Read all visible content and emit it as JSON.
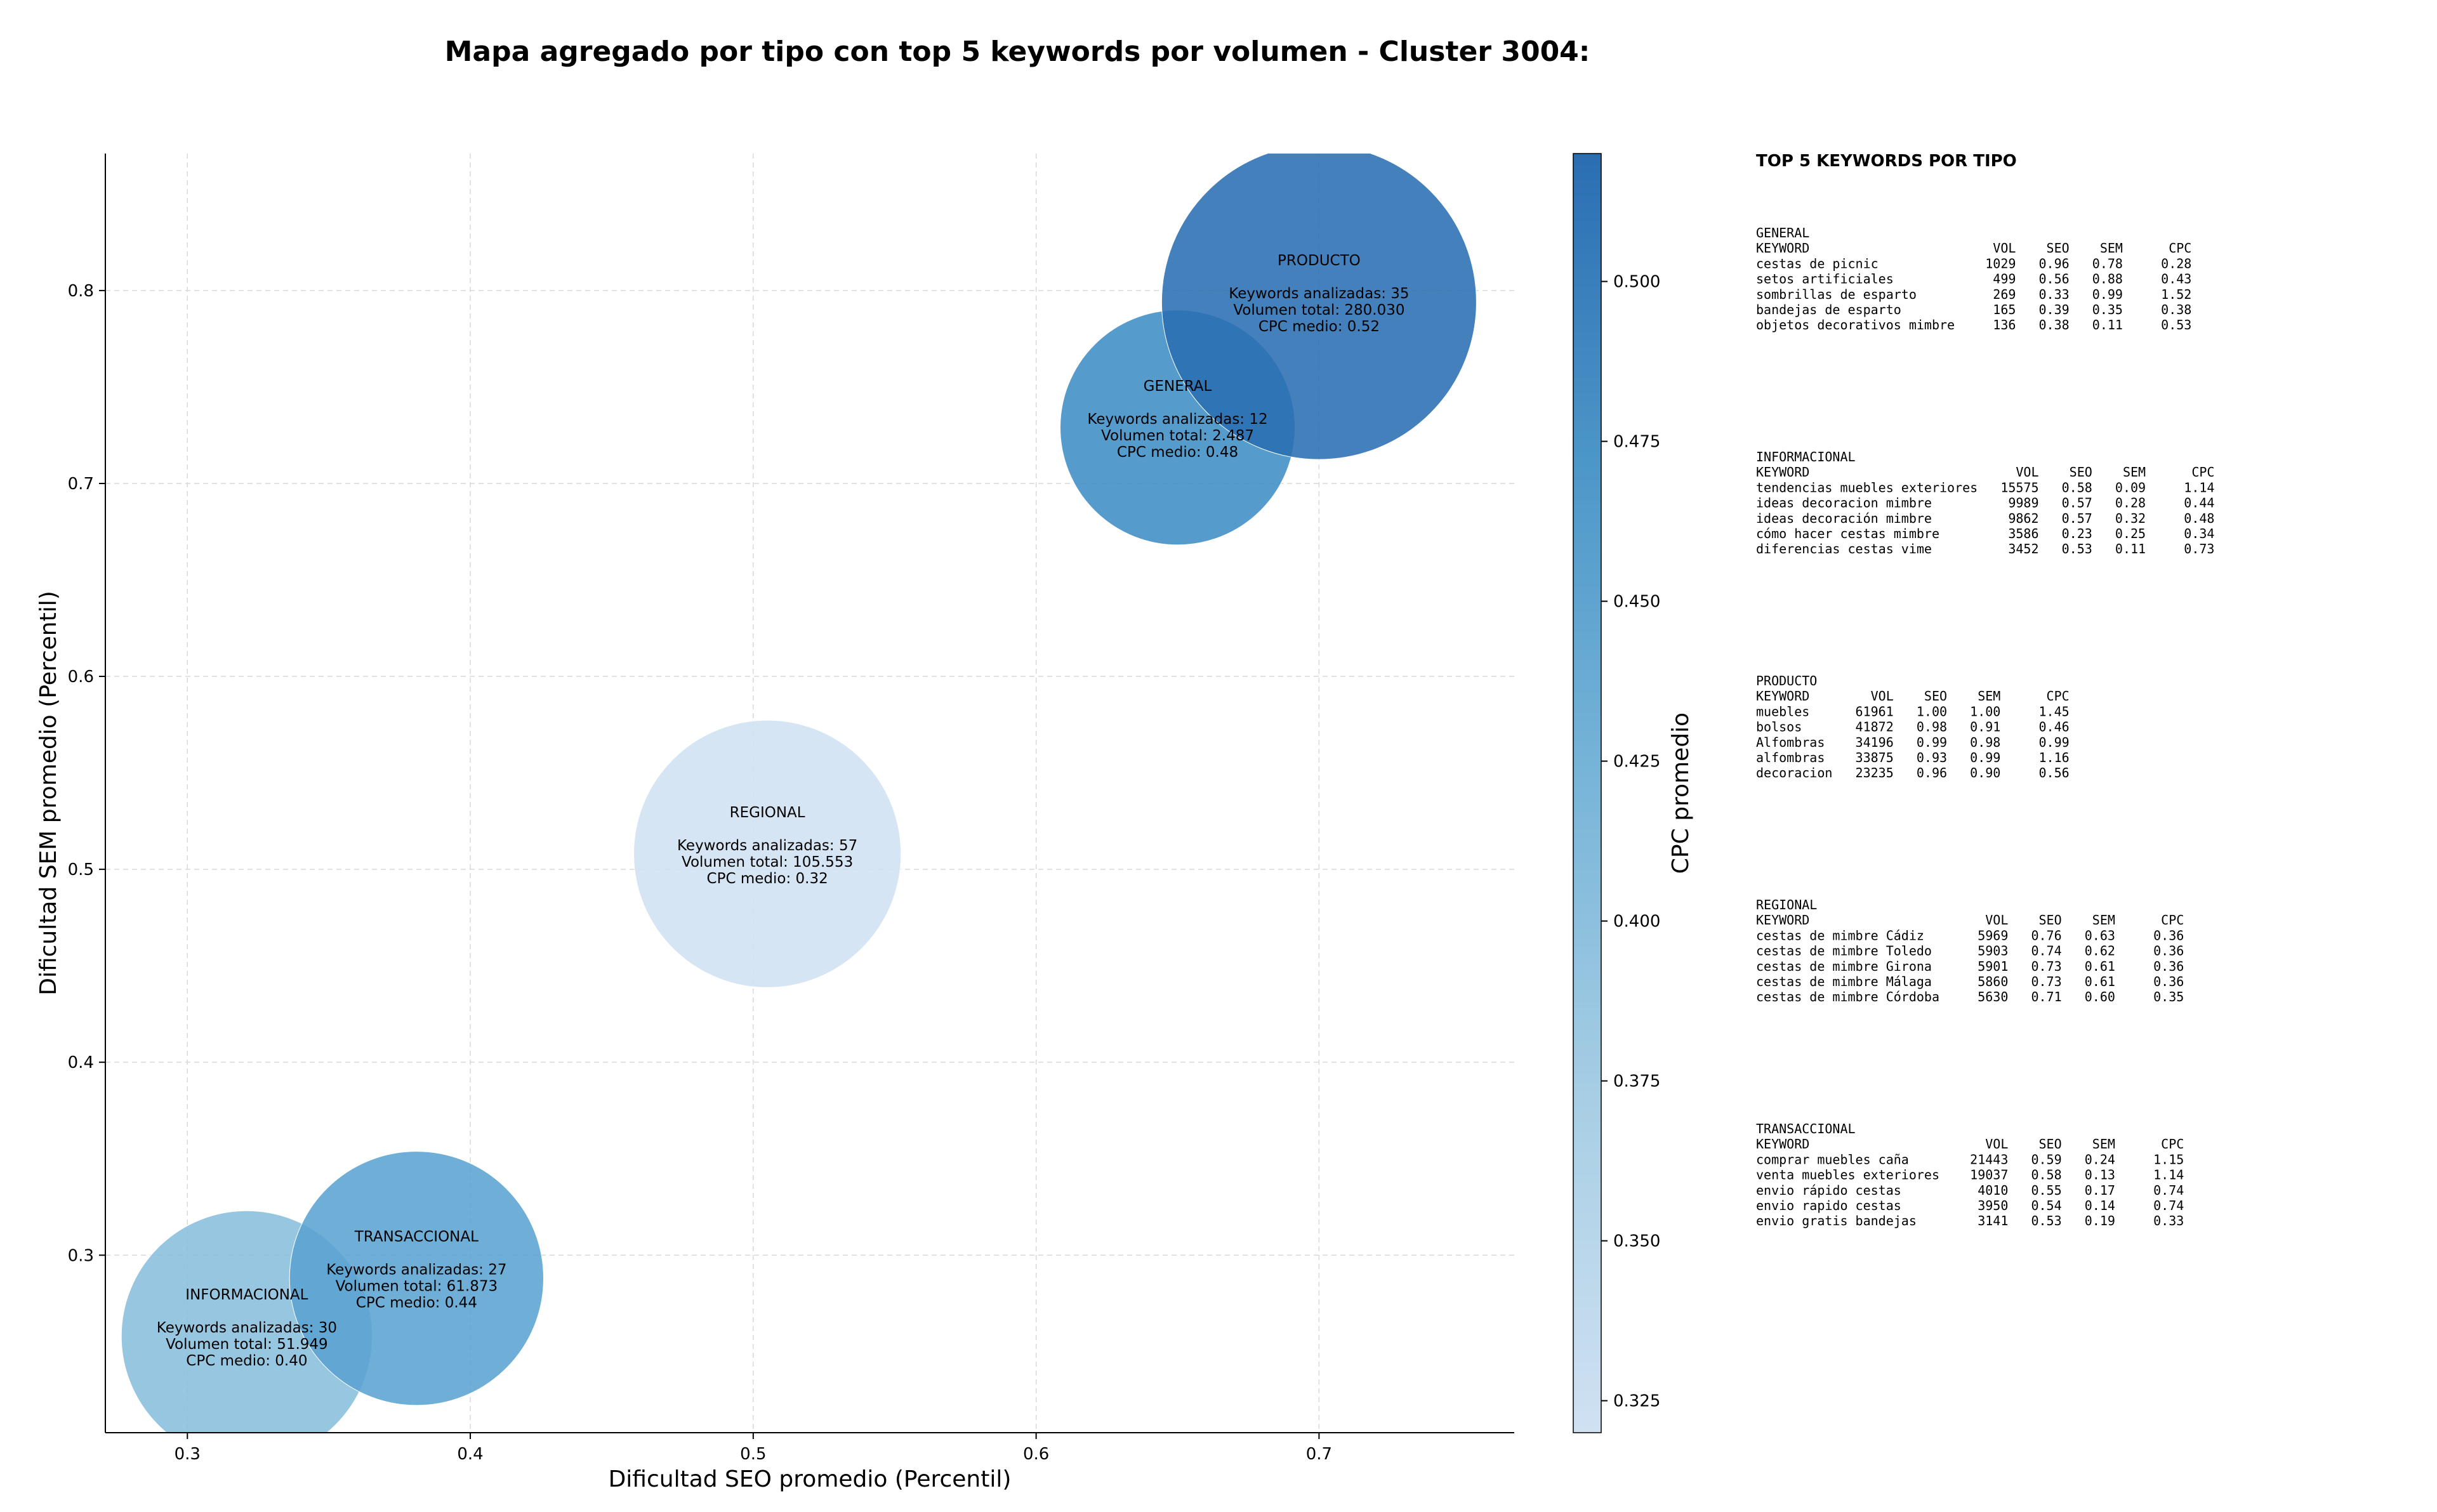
{
  "chart_data": {
    "type": "scatter",
    "title": "Mapa agregado por tipo con top 5 keywords por volumen - Cluster 3004:",
    "xlabel": "Dificultad SEO promedio (Percentil)",
    "ylabel": "Dificultad SEM promedio (Percentil)",
    "xlim": [
      0.271,
      0.769
    ],
    "ylim": [
      0.208,
      0.871
    ],
    "xticks": [
      {
        "v": 0.3,
        "label": "0.3"
      },
      {
        "v": 0.4,
        "label": "0.4"
      },
      {
        "v": 0.5,
        "label": "0.5"
      },
      {
        "v": 0.6,
        "label": "0.6"
      },
      {
        "v": 0.7,
        "label": "0.7"
      }
    ],
    "yticks": [
      {
        "v": 0.3,
        "label": "0.3"
      },
      {
        "v": 0.4,
        "label": "0.4"
      },
      {
        "v": 0.5,
        "label": "0.5"
      },
      {
        "v": 0.6,
        "label": "0.6"
      },
      {
        "v": 0.7,
        "label": "0.7"
      },
      {
        "v": 0.8,
        "label": "0.8"
      }
    ],
    "grid": true,
    "colorbar": {
      "label": "CPC promedio",
      "min": 0.32,
      "max": 0.52,
      "low_color": "#d0e1f2",
      "high_color": "#2a6eb2",
      "ticks": [
        {
          "v": 0.325,
          "label": "0.325"
        },
        {
          "v": 0.35,
          "label": "0.350"
        },
        {
          "v": 0.375,
          "label": "0.375"
        },
        {
          "v": 0.4,
          "label": "0.400"
        },
        {
          "v": 0.425,
          "label": "0.425"
        },
        {
          "v": 0.45,
          "label": "0.450"
        },
        {
          "v": 0.475,
          "label": "0.475"
        },
        {
          "v": 0.5,
          "label": "0.500"
        }
      ]
    },
    "points": [
      {
        "name": "INFORMACIONAL",
        "x": 0.321,
        "y": 0.258,
        "keywords": 30,
        "volume": 51949,
        "cpc": 0.4,
        "color": "#89bedc",
        "lines": [
          "INFORMACIONAL",
          "",
          "Keywords analizadas: 30",
          "Volumen total: 51.949",
          "CPC medio: 0.40"
        ]
      },
      {
        "name": "TRANSACCIONAL",
        "x": 0.381,
        "y": 0.288,
        "keywords": 27,
        "volume": 61873,
        "cpc": 0.44,
        "color": "#5ba3d0",
        "lines": [
          "TRANSACCIONAL",
          "",
          "Keywords analizadas: 27",
          "Volumen total: 61.873",
          "CPC medio: 0.44"
        ]
      },
      {
        "name": "REGIONAL",
        "x": 0.505,
        "y": 0.508,
        "keywords": 57,
        "volume": 105553,
        "cpc": 0.32,
        "color": "#d0e1f2",
        "lines": [
          "REGIONAL",
          "",
          "Keywords analizadas: 57",
          "Volumen total: 105.553",
          "CPC medio: 0.32"
        ]
      },
      {
        "name": "GENERAL",
        "x": 0.65,
        "y": 0.729,
        "keywords": 12,
        "volume": 2487,
        "cpc": 0.48,
        "color": "#3d8dc4",
        "lines": [
          "GENERAL",
          "",
          "Keywords analizadas: 12",
          "Volumen total: 2.487",
          "CPC medio: 0.48"
        ]
      },
      {
        "name": "PRODUCTO",
        "x": 0.7,
        "y": 0.794,
        "keywords": 35,
        "volume": 280030,
        "cpc": 0.52,
        "color": "#2a6eb2",
        "lines": [
          "PRODUCTO",
          "",
          "Keywords analizadas: 35",
          "Volumen total: 280.030",
          "CPC medio: 0.52"
        ]
      }
    ]
  },
  "side_panel": {
    "title": "TOP 5 KEYWORDS POR TIPO",
    "blocks": [
      {
        "lines": [
          "GENERAL",
          "KEYWORD                        VOL    SEO    SEM      CPC",
          "cestas de picnic              1029   0.96   0.78     0.28",
          "setos artificiales             499   0.56   0.88     0.43",
          "sombrillas de esparto          269   0.33   0.99     1.52",
          "bandejas de esparto            165   0.39   0.35     0.38",
          "objetos decorativos mimbre     136   0.38   0.11     0.53"
        ]
      },
      {
        "lines": [
          "INFORMACIONAL",
          "KEYWORD                           VOL    SEO    SEM      CPC",
          "tendencias muebles exteriores   15575   0.58   0.09     1.14",
          "ideas decoracion mimbre          9989   0.57   0.28     0.44",
          "ideas decoración mimbre          9862   0.57   0.32     0.48",
          "cómo hacer cestas mimbre         3586   0.23   0.25     0.34",
          "diferencias cestas vime          3452   0.53   0.11     0.73"
        ]
      },
      {
        "lines": [
          "PRODUCTO",
          "KEYWORD        VOL    SEO    SEM      CPC",
          "muebles      61961   1.00   1.00     1.45",
          "bolsos       41872   0.98   0.91     0.46",
          "Alfombras    34196   0.99   0.98     0.99",
          "alfombras    33875   0.93   0.99     1.16",
          "decoracion   23235   0.96   0.90     0.56"
        ]
      },
      {
        "lines": [
          "REGIONAL",
          "KEYWORD                       VOL    SEO    SEM      CPC",
          "cestas de mimbre Cádiz       5969   0.76   0.63     0.36",
          "cestas de mimbre Toledo      5903   0.74   0.62     0.36",
          "cestas de mimbre Girona      5901   0.73   0.61     0.36",
          "cestas de mimbre Málaga      5860   0.73   0.61     0.36",
          "cestas de mimbre Córdoba     5630   0.71   0.60     0.35"
        ]
      },
      {
        "lines": [
          "TRANSACCIONAL",
          "KEYWORD                       VOL    SEO    SEM      CPC",
          "comprar muebles caña        21443   0.59   0.24     1.15",
          "venta muebles exteriores    19037   0.58   0.13     1.14",
          "envio rápido cestas          4010   0.55   0.17     0.74",
          "envio rapido cestas          3950   0.54   0.14     0.74",
          "envio gratis bandejas        3141   0.53   0.19     0.33"
        ]
      }
    ]
  }
}
